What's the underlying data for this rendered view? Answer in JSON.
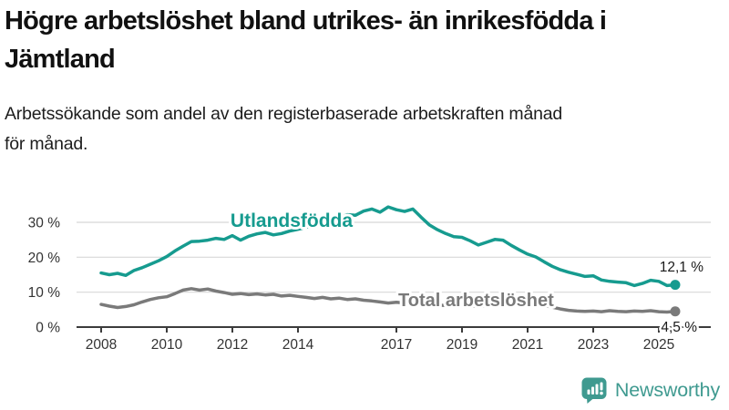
{
  "header": {
    "title_line1": "Högre arbetslöshet bland utrikes- än inrikesfödda i",
    "title_line2": "Jämtland",
    "subtitle_line1": "Arbetssökande som andel av den registerbaserade arbetskraften månad",
    "subtitle_line2": "för månad."
  },
  "chart_data": {
    "type": "line",
    "title": "Högre arbetslöshet bland utrikes- än inrikesfödda i Jämtland",
    "subtitle": "Arbetssökande som andel av den registerbaserade arbetskraften månad för månad.",
    "xlabel": "",
    "ylabel": "",
    "x_start": 2008,
    "x_step_years": 0.25,
    "x_end": 2025.5,
    "y_range": [
      0,
      36
    ],
    "grid": true,
    "grid_color": "#D8D8D8",
    "axis_color": "#3C3C3C",
    "text_color": "#333333",
    "value_label_color": "#1a1a1a",
    "x_ticks": [
      {
        "year": 2008,
        "label": "2008"
      },
      {
        "year": 2010,
        "label": "2010"
      },
      {
        "year": 2012,
        "label": "2012"
      },
      {
        "year": 2014,
        "label": "2014"
      },
      {
        "year": 2017,
        "label": "2017"
      },
      {
        "year": 2019,
        "label": "2019"
      },
      {
        "year": 2021,
        "label": "2021"
      },
      {
        "year": 2023,
        "label": "2023"
      },
      {
        "year": 2025,
        "label": "2025"
      }
    ],
    "y_ticks": [
      {
        "value": 0,
        "label": "0 %"
      },
      {
        "value": 10,
        "label": "10 %"
      },
      {
        "value": 20,
        "label": "20 %"
      },
      {
        "value": 30,
        "label": "30 %"
      }
    ],
    "series": [
      {
        "name": "Utlandsfödda",
        "color": "#169B8F",
        "end_label": "12,1 %",
        "end_value": 12.1,
        "values": [
          15.5,
          15.0,
          15.4,
          14.8,
          16.2,
          17.0,
          18.0,
          19.0,
          20.2,
          21.8,
          23.2,
          24.5,
          24.6,
          24.9,
          25.4,
          25.1,
          26.2,
          24.9,
          26.0,
          26.7,
          27.1,
          26.4,
          26.8,
          27.5,
          28.0,
          28.6,
          29.2,
          29.8,
          30.4,
          31.2,
          32.2,
          32.0,
          33.2,
          33.8,
          32.9,
          34.4,
          33.6,
          33.1,
          33.8,
          31.5,
          29.3,
          27.9,
          26.8,
          25.9,
          25.7,
          24.7,
          23.5,
          24.3,
          25.1,
          24.9,
          23.4,
          22.1,
          20.9,
          20.1,
          18.7,
          17.4,
          16.4,
          15.7,
          15.1,
          14.5,
          14.7,
          13.5,
          13.1,
          12.9,
          12.7,
          11.9,
          12.5,
          13.4,
          13.1,
          11.9,
          12.1
        ]
      },
      {
        "name": "Total arbetslöshet",
        "color": "#7A7A7A",
        "end_label": "4,5 %",
        "end_value": 4.5,
        "values": [
          6.5,
          6.0,
          5.6,
          5.9,
          6.4,
          7.2,
          7.9,
          8.4,
          8.7,
          9.6,
          10.6,
          11.0,
          10.6,
          10.9,
          10.3,
          9.9,
          9.4,
          9.6,
          9.3,
          9.5,
          9.2,
          9.4,
          8.9,
          9.1,
          8.8,
          8.5,
          8.2,
          8.5,
          8.1,
          8.3,
          7.9,
          8.1,
          7.7,
          7.5,
          7.2,
          6.9,
          7.1,
          6.9,
          6.7,
          6.6,
          6.4,
          6.3,
          6.2,
          6.2,
          6.3,
          6.1,
          6.0,
          6.1,
          6.2,
          7.6,
          7.9,
          7.4,
          7.0,
          6.6,
          6.2,
          5.7,
          5.2,
          4.8,
          4.6,
          4.5,
          4.6,
          4.4,
          4.7,
          4.5,
          4.4,
          4.6,
          4.5,
          4.7,
          4.4,
          4.3,
          4.5
        ]
      }
    ]
  },
  "footer": {
    "brand": "Newsworthy",
    "brand_color": "#3F9A90",
    "logo_icon": "bar-chart-speech-bubble"
  }
}
